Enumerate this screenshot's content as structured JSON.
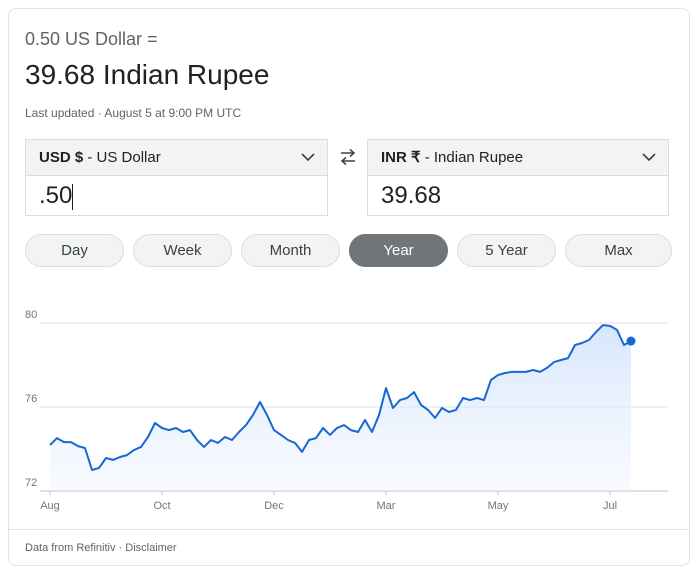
{
  "header": {
    "amount_line": "0.50 US Dollar =",
    "result_line": "39.68 Indian Rupee",
    "updated": "Last updated · August 5 at 9:00 PM UTC"
  },
  "converter": {
    "from": {
      "code": "USD $",
      "name": "- US Dollar",
      "amount": ".50"
    },
    "to": {
      "code": "INR ₹",
      "name": "- Indian Rupee",
      "amount": "39.68"
    }
  },
  "tabs": [
    "Day",
    "Week",
    "Month",
    "Year",
    "5 Year",
    "Max"
  ],
  "selected_tab": 3,
  "chart_data": {
    "type": "line",
    "color": "#1967d2",
    "area": true,
    "end_marker": true,
    "grid": true,
    "values": [
      74.19,
      74.52,
      74.33,
      74.33,
      74.14,
      74.05,
      73.0,
      73.1,
      73.57,
      73.48,
      73.62,
      73.71,
      73.95,
      74.1,
      74.57,
      75.24,
      75.0,
      74.9,
      75.0,
      74.81,
      74.9,
      74.43,
      74.1,
      74.43,
      74.29,
      74.57,
      74.43,
      74.81,
      75.14,
      75.62,
      76.24,
      75.62,
      74.9,
      74.67,
      74.43,
      74.29,
      73.86,
      74.43,
      74.52,
      75.0,
      74.67,
      75.0,
      75.14,
      74.9,
      74.81,
      75.38,
      74.81,
      75.62,
      76.9,
      75.95,
      76.33,
      76.43,
      76.71,
      76.1,
      75.86,
      75.48,
      75.95,
      75.76,
      75.86,
      76.43,
      76.33,
      76.43,
      76.33,
      77.29,
      77.52,
      77.62,
      77.67,
      77.67,
      77.67,
      77.76,
      77.67,
      77.86,
      78.14,
      78.24,
      78.33,
      78.95,
      79.05,
      79.19,
      79.57,
      79.9,
      79.86,
      79.67,
      78.95,
      79.14
    ],
    "ylim": [
      72,
      80
    ],
    "yticks": [
      72,
      76,
      80
    ],
    "xlim": [
      0,
      83
    ],
    "xticks": [
      {
        "value": 0,
        "label": "Aug"
      },
      {
        "value": 16,
        "label": "Oct"
      },
      {
        "value": 32,
        "label": "Dec"
      },
      {
        "value": 48,
        "label": "Mar"
      },
      {
        "value": 64,
        "label": "May"
      },
      {
        "value": 80,
        "label": "Jul"
      }
    ]
  },
  "footer": {
    "text": "Data from Refinitiv · Disclaimer"
  }
}
